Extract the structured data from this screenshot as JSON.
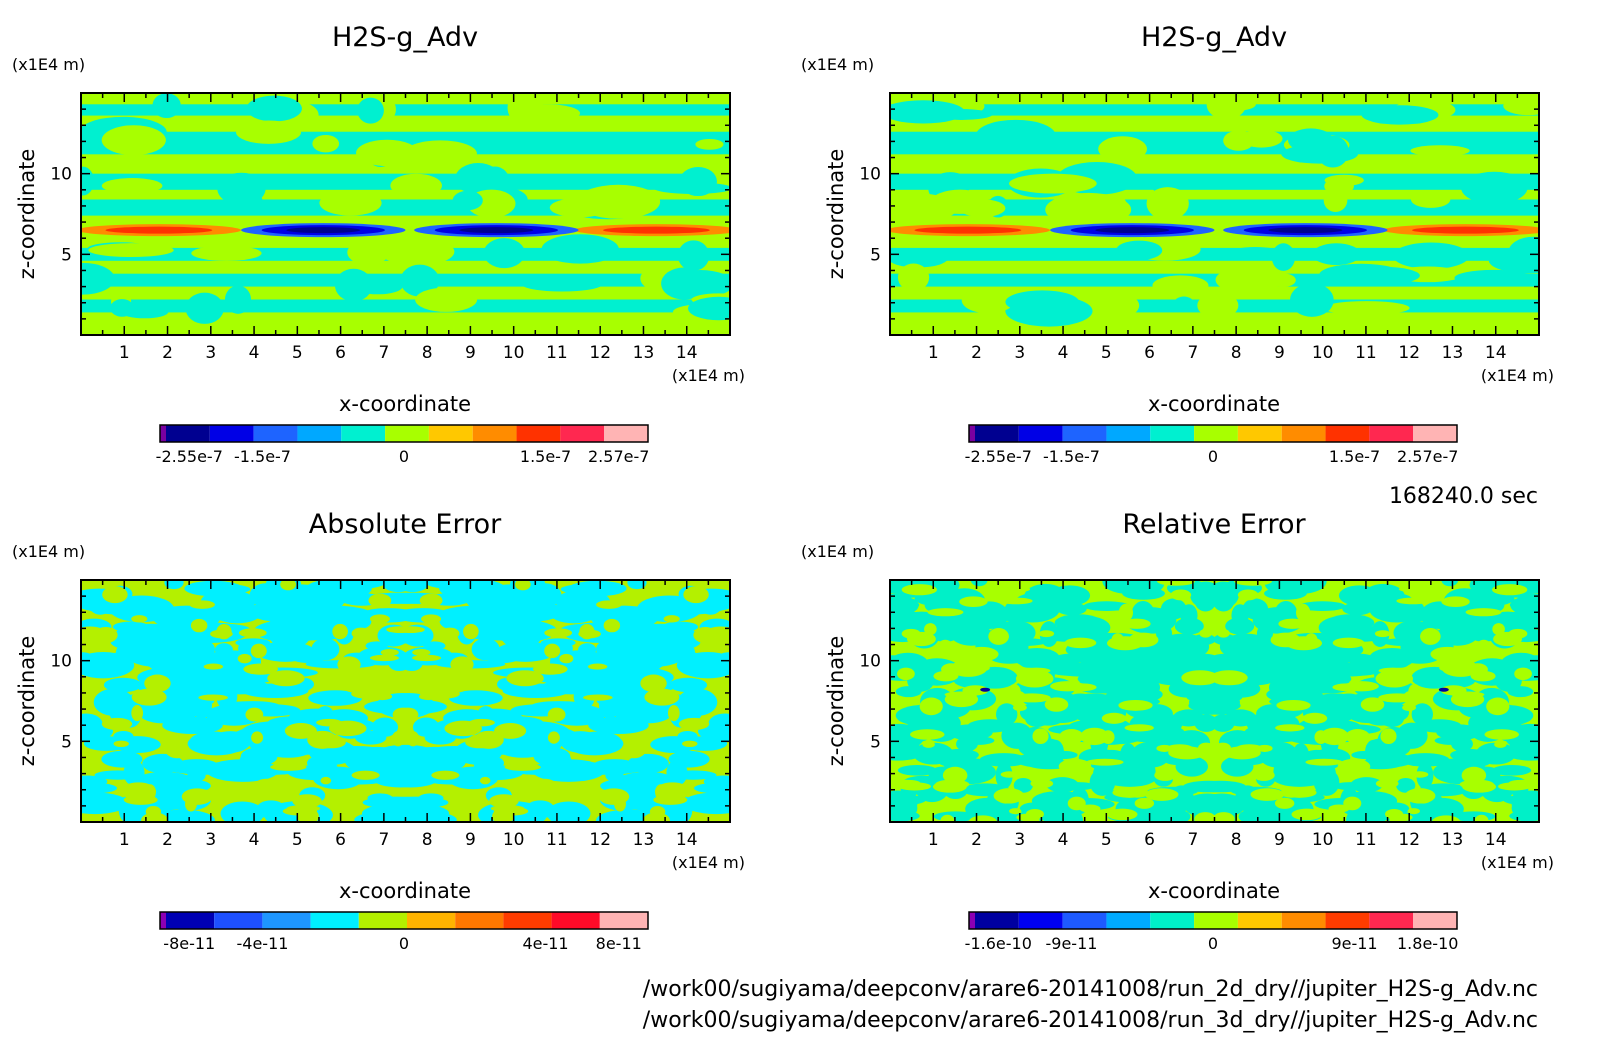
{
  "time_label": "168240.0 sec",
  "file_paths": [
    "/work00/sugiyama/deepconv/arare6-20141008/run_2d_dry//jupiter_H2S-g_Adv.nc",
    "/work00/sugiyama/deepconv/arare6-20141008/run_3d_dry//jupiter_H2S-g_Adv.nc"
  ],
  "chart_data": [
    {
      "type": "heatmap",
      "title": "H2S-g_Adv",
      "xlabel": "x-coordinate",
      "ylabel": "z-coordinate",
      "x_unit": "(x1E4 m)",
      "y_unit": "(x1E4 m)",
      "xlim": [
        0,
        15
      ],
      "ylim": [
        0,
        15
      ],
      "x_ticks": [
        "1",
        "2",
        "3",
        "4",
        "5",
        "6",
        "7",
        "8",
        "9",
        "10",
        "11",
        "12",
        "13",
        "14"
      ],
      "y_ticks": [
        "5",
        "10"
      ],
      "colorbar_labels": [
        "-2.55e-7",
        "-1.5e-7",
        "0",
        "1.5e-7",
        "2.57e-7"
      ],
      "colorbar_colors": [
        "#7a00a0",
        "#000090",
        "#0000e6",
        "#1e64ff",
        "#00a8ff",
        "#00f0d0",
        "#a8ff00",
        "#ffc800",
        "#ff8c00",
        "#ff3200",
        "#ff2850",
        "#ffb4b4"
      ],
      "pattern": "field"
    },
    {
      "type": "heatmap",
      "title": "H2S-g_Adv",
      "xlabel": "x-coordinate",
      "ylabel": "z-coordinate",
      "x_unit": "(x1E4 m)",
      "y_unit": "(x1E4 m)",
      "xlim": [
        0,
        15
      ],
      "ylim": [
        0,
        15
      ],
      "x_ticks": [
        "1",
        "2",
        "3",
        "4",
        "5",
        "6",
        "7",
        "8",
        "9",
        "10",
        "11",
        "12",
        "13",
        "14"
      ],
      "y_ticks": [
        "5",
        "10"
      ],
      "colorbar_labels": [
        "-2.55e-7",
        "-1.5e-7",
        "0",
        "1.5e-7",
        "2.57e-7"
      ],
      "colorbar_colors": [
        "#7a00a0",
        "#000090",
        "#0000e6",
        "#1e64ff",
        "#00a8ff",
        "#00f0d0",
        "#a8ff00",
        "#ffc800",
        "#ff8c00",
        "#ff3200",
        "#ff2850",
        "#ffb4b4"
      ],
      "pattern": "field"
    },
    {
      "type": "heatmap",
      "title": "Absolute Error",
      "xlabel": "x-coordinate",
      "ylabel": "z-coordinate",
      "x_unit": "(x1E4 m)",
      "y_unit": "(x1E4 m)",
      "xlim": [
        0,
        15
      ],
      "ylim": [
        0,
        15
      ],
      "x_ticks": [
        "1",
        "2",
        "3",
        "4",
        "5",
        "6",
        "7",
        "8",
        "9",
        "10",
        "11",
        "12",
        "13",
        "14"
      ],
      "y_ticks": [
        "5",
        "10"
      ],
      "colorbar_labels": [
        "-8e-11",
        "-4e-11",
        "0",
        "4e-11",
        "8e-11"
      ],
      "colorbar_colors": [
        "#8c00b4",
        "#0000b4",
        "#1e50ff",
        "#1e96ff",
        "#00f0ff",
        "#b4f000",
        "#ffb400",
        "#ff7800",
        "#ff3c00",
        "#ff0a28",
        "#ffb4b4"
      ],
      "pattern": "abs"
    },
    {
      "type": "heatmap",
      "title": "Relative Error",
      "xlabel": "x-coordinate",
      "ylabel": "z-coordinate",
      "x_unit": "(x1E4 m)",
      "y_unit": "(x1E4 m)",
      "xlim": [
        0,
        15
      ],
      "ylim": [
        0,
        15
      ],
      "x_ticks": [
        "1",
        "2",
        "3",
        "4",
        "5",
        "6",
        "7",
        "8",
        "9",
        "10",
        "11",
        "12",
        "13",
        "14"
      ],
      "y_ticks": [
        "5",
        "10"
      ],
      "colorbar_labels": [
        "-1.6e-10",
        "-9e-11",
        "0",
        "9e-11",
        "1.8e-10"
      ],
      "colorbar_colors": [
        "#8c00b4",
        "#0000a0",
        "#0000f0",
        "#1e5aff",
        "#00aaff",
        "#00f0c8",
        "#a8ff00",
        "#ffc800",
        "#ff8c00",
        "#ff3c00",
        "#ff2850",
        "#ffb4b4"
      ],
      "pattern": "rel"
    }
  ]
}
